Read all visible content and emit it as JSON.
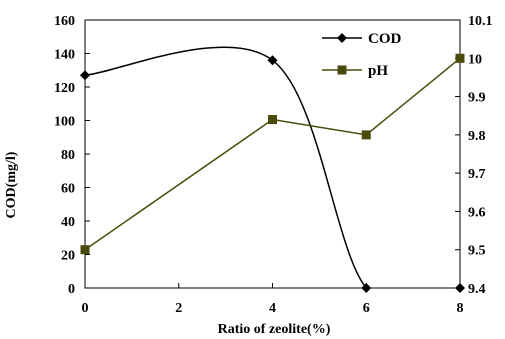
{
  "chart_data": {
    "type": "line",
    "title": "",
    "xlabel": "Ratio of zeolite(%)",
    "ylabel_left": "COD(mg/l)",
    "ylabel_right": "",
    "xlim": [
      0,
      8
    ],
    "ylim_left": [
      0,
      160
    ],
    "ylim_right": [
      9.4,
      10.1
    ],
    "x_ticks": [
      "0",
      "2",
      "4",
      "6",
      "8"
    ],
    "y_left_ticks": [
      "0",
      "20",
      "40",
      "60",
      "80",
      "100",
      "120",
      "140",
      "160"
    ],
    "y_right_ticks": [
      "9.4",
      "9.5",
      "9.6",
      "9.7",
      "9.8",
      "9.9",
      "10",
      "10.1"
    ],
    "grid": false,
    "legend_position": "top-right",
    "series": [
      {
        "name": "COD",
        "axis": "left",
        "marker": "diamond",
        "color": "#000000",
        "x": [
          0,
          4,
          6,
          8
        ],
        "values": [
          127,
          136,
          0,
          0
        ]
      },
      {
        "name": "pH",
        "axis": "right",
        "marker": "square",
        "color": "#4a4a0a",
        "x": [
          0,
          4,
          6,
          8
        ],
        "values": [
          9.5,
          9.84,
          9.8,
          10.0
        ]
      }
    ]
  }
}
